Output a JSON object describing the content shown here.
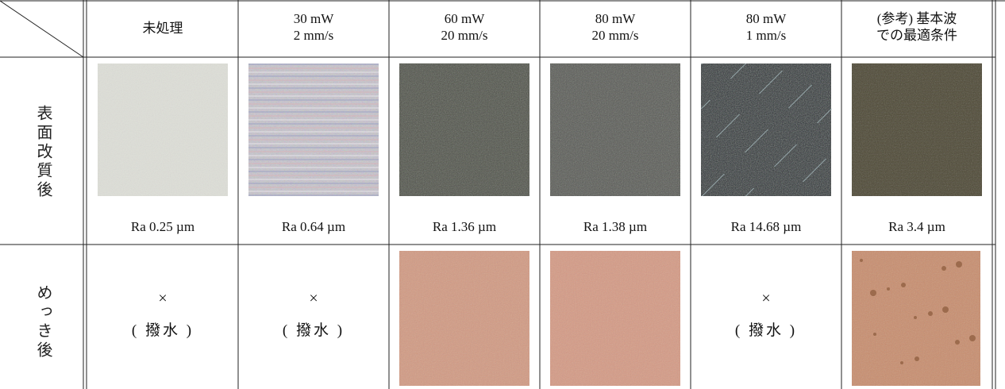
{
  "table": {
    "columns": [
      {
        "lines": [
          "未処理"
        ]
      },
      {
        "lines": [
          "30 mW",
          "2 mm/s"
        ]
      },
      {
        "lines": [
          "60 mW",
          "20 mm/s"
        ]
      },
      {
        "lines": [
          "80 mW",
          "20 mm/s"
        ]
      },
      {
        "lines": [
          "80 mW",
          "1 mm/s"
        ]
      },
      {
        "lines": [
          "(参考) 基本波",
          "での最適条件"
        ]
      }
    ],
    "rows": [
      {
        "label": "表面改質後",
        "cells": [
          "Ra 0.25 µm",
          "Ra 0.64 µm",
          "Ra 1.36 µm",
          "Ra 1.38 µm",
          "Ra 14.68 µm",
          "Ra 3.4 µm"
        ]
      },
      {
        "label": "めっき後",
        "cells": [
          {
            "mark": "×",
            "note": "( 撥水 )"
          },
          {
            "mark": "×",
            "note": "( 撥水 )"
          },
          null,
          null,
          {
            "mark": "×",
            "note": "( 撥水 )"
          },
          null
        ]
      }
    ]
  }
}
